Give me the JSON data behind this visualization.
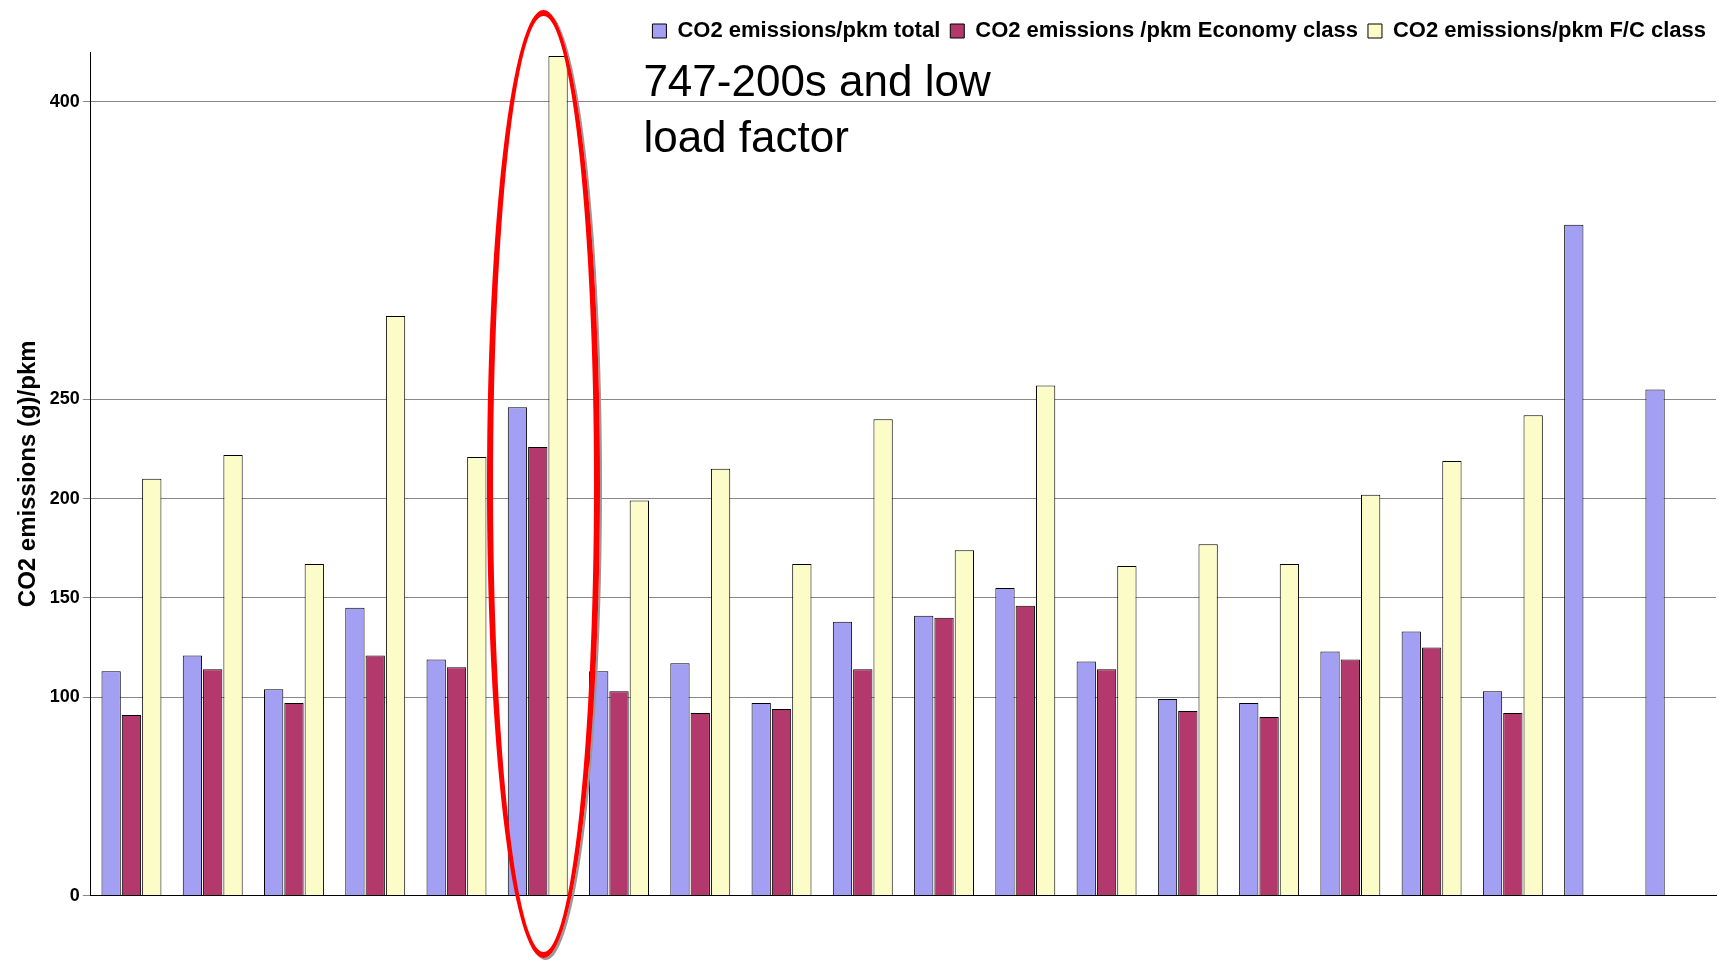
{
  "chart_data": {
    "type": "bar",
    "categories": [
      null,
      null,
      null,
      null,
      null,
      null,
      null,
      null,
      null,
      null,
      null,
      null,
      null,
      null,
      null,
      null,
      null,
      null,
      null,
      null
    ],
    "series": [
      {
        "name": "CO2 emissions/pkm total",
        "color": "#a3a0f4",
        "values": [
          113,
          121,
          104,
          145,
          119,
          246,
          113,
          117,
          97,
          138,
          141,
          155,
          118,
          99,
          97,
          123,
          133,
          103,
          338,
          255
        ]
      },
      {
        "name": "CO2 emissions /pkm Economy class",
        "color": "#b3386c",
        "values": [
          91,
          114,
          97,
          121,
          115,
          226,
          103,
          92,
          94,
          114,
          140,
          146,
          114,
          93,
          90,
          119,
          125,
          92,
          null,
          null
        ]
      },
      {
        "name": "CO2 emissions/pkm F/C class",
        "color": "#fcfcc8",
        "values": [
          210,
          222,
          167,
          292,
          221,
          423,
          199,
          215,
          167,
          240,
          174,
          257,
          166,
          177,
          167,
          202,
          219,
          242,
          null,
          null
        ]
      }
    ],
    "ylabel": "CO2 emissions (g)/pkm",
    "ylim": [
      0,
      425
    ],
    "yticks": [
      0,
      100,
      150,
      200,
      250,
      400
    ],
    "grid": "y",
    "legend": "top right",
    "annotations": [
      "747-200s and low load factor"
    ]
  }
}
